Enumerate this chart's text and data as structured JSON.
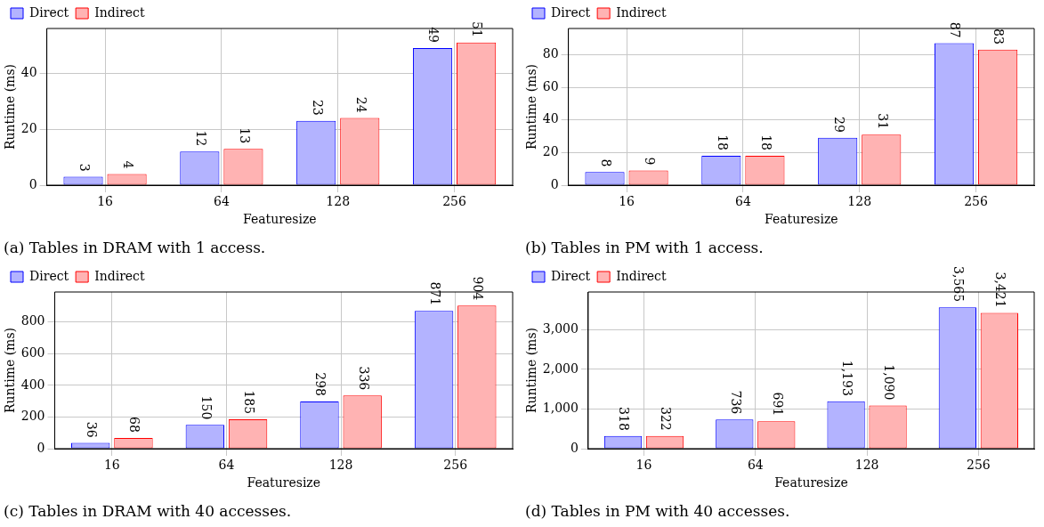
{
  "chart_data": [
    {
      "type": "bar",
      "title": "(a) Tables in DRAM with 1 access.",
      "xlabel": "Featuresize",
      "ylabel": "Runtime (ms)",
      "categories": [
        "16",
        "64",
        "128",
        "256"
      ],
      "series": [
        {
          "name": "Direct",
          "color": "#b3b3ff",
          "values": [
            3,
            12,
            23,
            49
          ]
        },
        {
          "name": "Indirect",
          "color": "#ffb3b3",
          "values": [
            4,
            13,
            24,
            51
          ]
        }
      ],
      "ylim": [
        0,
        56
      ],
      "yticks": [
        0,
        20,
        40
      ],
      "grid": true,
      "legend": "top left",
      "data_labels": true
    },
    {
      "type": "bar",
      "title": "(b) Tables in PM with 1 access.",
      "xlabel": "Featuresize",
      "ylabel": "Runtime (ms)",
      "categories": [
        "16",
        "64",
        "128",
        "256"
      ],
      "series": [
        {
          "name": "Direct",
          "color": "#b3b3ff",
          "values": [
            8,
            18,
            29,
            87
          ]
        },
        {
          "name": "Indirect",
          "color": "#ffb3b3",
          "values": [
            9,
            18,
            31,
            83
          ]
        }
      ],
      "ylim": [
        0,
        96
      ],
      "yticks": [
        0,
        20,
        40,
        60,
        80
      ],
      "grid": true,
      "legend": "top left",
      "data_labels": true
    },
    {
      "type": "bar",
      "title": "(c) Tables in DRAM with 40 accesses.",
      "xlabel": "Featuresize",
      "ylabel": "Runtime (ms)",
      "categories": [
        "16",
        "64",
        "128",
        "256"
      ],
      "series": [
        {
          "name": "Direct",
          "color": "#b3b3ff",
          "values": [
            36,
            150,
            298,
            871
          ]
        },
        {
          "name": "Indirect",
          "color": "#ffb3b3",
          "values": [
            68,
            185,
            336,
            904
          ]
        }
      ],
      "ylim": [
        0,
        990
      ],
      "yticks": [
        0,
        200,
        400,
        600,
        800
      ],
      "grid": true,
      "legend": "top left",
      "data_labels": true
    },
    {
      "type": "bar",
      "title": "(d) Tables in PM with 40 accesses.",
      "xlabel": "Featuresize",
      "ylabel": "Runtime (ms)",
      "categories": [
        "16",
        "64",
        "128",
        "256"
      ],
      "series": [
        {
          "name": "Direct",
          "color": "#b3b3ff",
          "values": [
            318,
            736,
            1193,
            3565
          ],
          "value_labels": [
            "318",
            "736",
            "1,193",
            "3,565"
          ]
        },
        {
          "name": "Indirect",
          "color": "#ffb3b3",
          "values": [
            322,
            691,
            1090,
            3421
          ],
          "value_labels": [
            "322",
            "691",
            "1,090",
            "3,421"
          ]
        }
      ],
      "ylim": [
        0,
        3950
      ],
      "yticks": [
        0,
        {
          "value": 1000,
          "label": "1,000"
        },
        {
          "value": 2000,
          "label": "2,000"
        },
        {
          "value": 3000,
          "label": "3,000"
        }
      ],
      "grid": true,
      "legend": "top left"
    }
  ]
}
